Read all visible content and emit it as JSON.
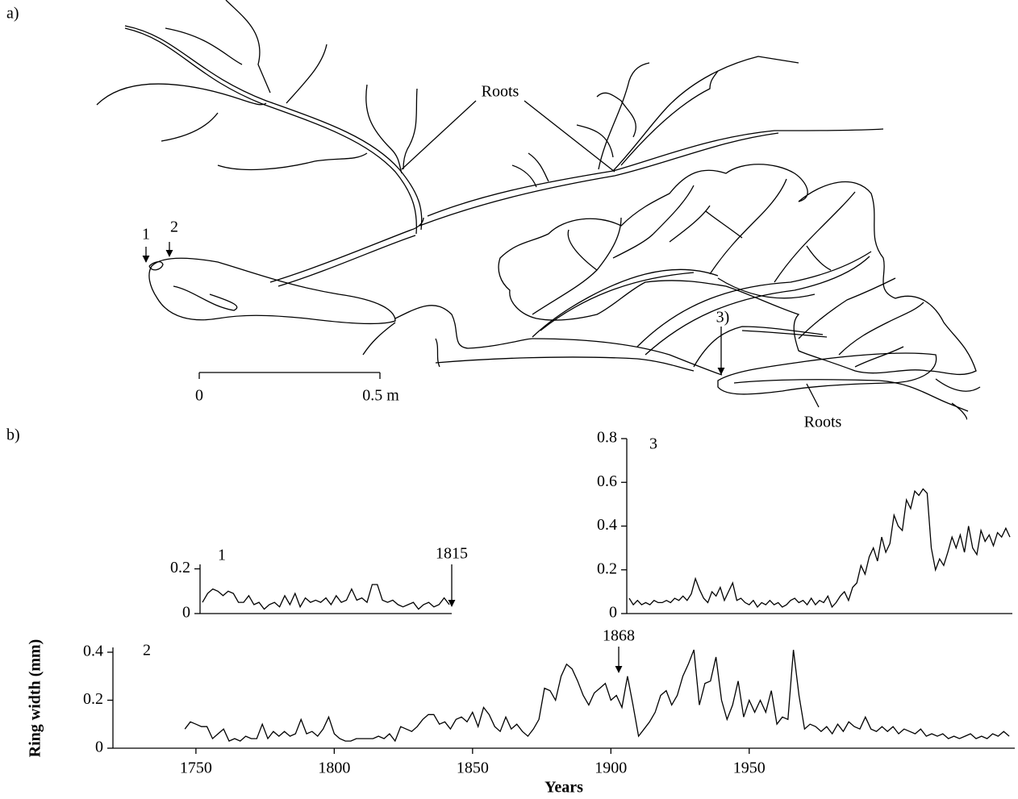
{
  "figure": {
    "panel_a": {
      "label": "a)",
      "roots_labels": [
        "Roots",
        "Roots"
      ],
      "markers": [
        "1",
        "2",
        "3)"
      ],
      "scale_bar": [
        "0",
        "0.5 m"
      ]
    },
    "panel_b_label": "b)"
  },
  "chart_data": [
    {
      "type": "line",
      "panel": "1",
      "color": "#000000",
      "annotation": "1815",
      "values": [
        0.05,
        0.09,
        0.11,
        0.1,
        0.08,
        0.1,
        0.09,
        0.05,
        0.05,
        0.08,
        0.04,
        0.05,
        0.02,
        0.04,
        0.05,
        0.03,
        0.08,
        0.04,
        0.09,
        0.03,
        0.07,
        0.05,
        0.06,
        0.05,
        0.07,
        0.04,
        0.08,
        0.05,
        0.06,
        0.11,
        0.06,
        0.07,
        0.05,
        0.13,
        0.13,
        0.06,
        0.05,
        0.06,
        0.04,
        0.03,
        0.04,
        0.05,
        0.02,
        0.04,
        0.05,
        0.03,
        0.04,
        0.07,
        0.04
      ],
      "ylim": [
        0,
        0.22
      ],
      "yticks": [
        0,
        0.2
      ]
    },
    {
      "type": "line",
      "panel": "2",
      "color": "#000000",
      "annotation": "1868",
      "xlabel": "Years",
      "ylabel": "Ring width (mm)",
      "x": [
        1746,
        1748,
        1750,
        1752,
        1754,
        1756,
        1758,
        1760,
        1762,
        1764,
        1766,
        1768,
        1770,
        1772,
        1774,
        1776,
        1778,
        1780,
        1782,
        1784,
        1786,
        1788,
        1790,
        1792,
        1794,
        1796,
        1798,
        1800,
        1802,
        1804,
        1806,
        1808,
        1810,
        1812,
        1814,
        1816,
        1818,
        1820,
        1822,
        1824,
        1826,
        1828,
        1830,
        1832,
        1834,
        1836,
        1838,
        1840,
        1842,
        1844,
        1846,
        1848,
        1850,
        1852,
        1854,
        1856,
        1858,
        1860,
        1862,
        1864,
        1866,
        1868,
        1870,
        1872,
        1874,
        1876,
        1878,
        1880,
        1882,
        1884,
        1886,
        1888,
        1890,
        1892,
        1894,
        1896,
        1898,
        1900,
        1902,
        1904,
        1906,
        1908,
        1910,
        1912,
        1914,
        1916,
        1918,
        1920,
        1922,
        1924,
        1926,
        1928,
        1930,
        1932,
        1934,
        1936,
        1938,
        1940,
        1942,
        1944,
        1946,
        1948,
        1950,
        1952,
        1954,
        1956,
        1958,
        1960,
        1962,
        1964,
        1966,
        1968,
        1970,
        1972,
        1974,
        1976,
        1978,
        1980,
        1982,
        1984,
        1986,
        1988,
        1990,
        1992,
        1994,
        1996,
        1998,
        2000,
        2002,
        2004,
        2006,
        2008,
        2010,
        2012,
        2014,
        2016,
        2018,
        2020,
        2022,
        2024,
        2026,
        2028,
        2030,
        2032,
        2034,
        2036,
        2038,
        2040,
        2042,
        2044
      ],
      "values": [
        0.08,
        0.11,
        0.1,
        0.09,
        0.09,
        0.04,
        0.06,
        0.08,
        0.03,
        0.04,
        0.03,
        0.05,
        0.04,
        0.04,
        0.1,
        0.04,
        0.07,
        0.05,
        0.07,
        0.05,
        0.06,
        0.12,
        0.06,
        0.07,
        0.05,
        0.08,
        0.13,
        0.06,
        0.04,
        0.03,
        0.03,
        0.04,
        0.04,
        0.04,
        0.04,
        0.05,
        0.04,
        0.06,
        0.03,
        0.09,
        0.08,
        0.07,
        0.09,
        0.12,
        0.14,
        0.14,
        0.1,
        0.11,
        0.08,
        0.12,
        0.13,
        0.11,
        0.15,
        0.09,
        0.17,
        0.14,
        0.09,
        0.07,
        0.13,
        0.08,
        0.1,
        0.07,
        0.05,
        0.08,
        0.12,
        0.25,
        0.24,
        0.2,
        0.3,
        0.35,
        0.33,
        0.28,
        0.22,
        0.18,
        0.23,
        0.25,
        0.27,
        0.2,
        0.22,
        0.17,
        0.3,
        0.18,
        0.05,
        0.08,
        0.11,
        0.15,
        0.22,
        0.24,
        0.18,
        0.22,
        0.3,
        0.35,
        0.41,
        0.18,
        0.27,
        0.28,
        0.38,
        0.2,
        0.12,
        0.18,
        0.28,
        0.13,
        0.2,
        0.15,
        0.2,
        0.15,
        0.24,
        0.1,
        0.13,
        0.12,
        0.41,
        0.22,
        0.08,
        0.1,
        0.09,
        0.07,
        0.09,
        0.06,
        0.1,
        0.07,
        0.11,
        0.09,
        0.08,
        0.13,
        0.08,
        0.07,
        0.09,
        0.07,
        0.09,
        0.06,
        0.08,
        0.07,
        0.06,
        0.08,
        0.05,
        0.06,
        0.05,
        0.06,
        0.04,
        0.05,
        0.04,
        0.05,
        0.06,
        0.04,
        0.05,
        0.04,
        0.06,
        0.05,
        0.07,
        0.05
      ],
      "xlim": [
        1720,
        2046
      ],
      "xticks": [
        1750,
        1800,
        1850,
        1900,
        1950
      ],
      "ylim": [
        0,
        0.42
      ],
      "yticks": [
        0,
        0.2,
        0.4
      ]
    },
    {
      "type": "line",
      "panel": "3",
      "color": "#000000",
      "values": [
        0.07,
        0.04,
        0.06,
        0.04,
        0.05,
        0.04,
        0.06,
        0.05,
        0.05,
        0.06,
        0.05,
        0.07,
        0.06,
        0.08,
        0.06,
        0.09,
        0.16,
        0.11,
        0.07,
        0.05,
        0.1,
        0.08,
        0.12,
        0.06,
        0.1,
        0.14,
        0.06,
        0.07,
        0.05,
        0.04,
        0.06,
        0.03,
        0.05,
        0.04,
        0.06,
        0.04,
        0.05,
        0.03,
        0.04,
        0.06,
        0.07,
        0.05,
        0.06,
        0.04,
        0.07,
        0.04,
        0.06,
        0.05,
        0.08,
        0.03,
        0.05,
        0.08,
        0.1,
        0.06,
        0.12,
        0.14,
        0.22,
        0.18,
        0.26,
        0.3,
        0.24,
        0.35,
        0.28,
        0.32,
        0.45,
        0.4,
        0.38,
        0.52,
        0.48,
        0.56,
        0.54,
        0.57,
        0.55,
        0.3,
        0.2,
        0.25,
        0.22,
        0.28,
        0.35,
        0.3,
        0.36,
        0.28,
        0.4,
        0.3,
        0.27,
        0.38,
        0.33,
        0.36,
        0.31,
        0.37,
        0.35,
        0.39,
        0.35
      ],
      "ylim": [
        0,
        0.8
      ],
      "yticks": [
        0,
        0.2,
        0.4,
        0.6,
        0.8
      ]
    }
  ]
}
